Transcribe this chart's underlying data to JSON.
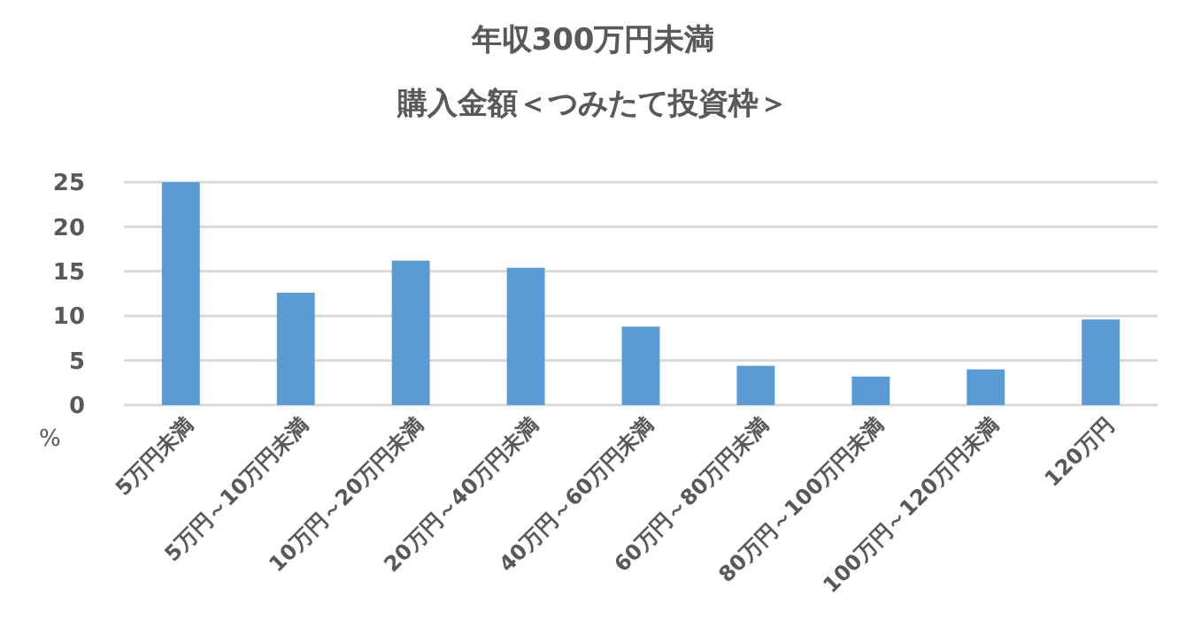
{
  "chart_data": {
    "type": "bar",
    "title": "年収300万円未満",
    "subtitle": "購入金額＜つみたて投資枠＞",
    "ylabel": "%",
    "categories": [
      "5万円未満",
      "5万円～10万円未満",
      "10万円～20万円未満",
      "20万円～40万円未満",
      "40万円～60万円未満",
      "60万円～80万円未満",
      "80万円～100万円未満",
      "100万円～120万円未満",
      "120万円"
    ],
    "series": [
      {
        "color": "#5b9bd5",
        "values": [
          25,
          12.6,
          16.2,
          15.4,
          8.8,
          4.4,
          3.2,
          4.0,
          9.6
        ]
      }
    ],
    "ylim": [
      0,
      25
    ],
    "yticks": [
      0,
      5,
      10,
      15,
      20,
      25
    ],
    "grid": "y"
  }
}
